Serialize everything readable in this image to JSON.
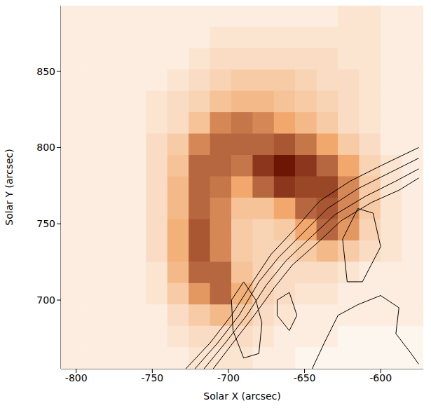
{
  "chart_data": {
    "type": "heatmap",
    "xlabel": "Solar X (arcsec)",
    "ylabel": "Solar Y (arcsec)",
    "xlim": [
      -810,
      -572
    ],
    "ylim": [
      655,
      893
    ],
    "xticks": [
      -800,
      -750,
      -700,
      -650,
      -600
    ],
    "yticks": [
      700,
      750,
      800,
      850
    ],
    "colors": [
      "#fdf6ee",
      "#f2a86c",
      "#6e1606"
    ],
    "x": [
      -803,
      -789,
      -775,
      -761,
      -747,
      -733,
      -719,
      -705,
      -691,
      -677,
      -663,
      -649,
      -635,
      -621,
      -607,
      -593,
      -579
    ],
    "y": [
      886,
      872,
      858,
      844,
      830,
      816,
      802,
      788,
      774,
      760,
      746,
      732,
      718,
      704,
      690,
      676,
      662
    ],
    "cells": [
      [
        1,
        1,
        1,
        1,
        1,
        1,
        1,
        1,
        1,
        1,
        1,
        1,
        1,
        1.5,
        1.5,
        1,
        1
      ],
      [
        1,
        1,
        1,
        1,
        1,
        1,
        1,
        1.5,
        1.5,
        1.5,
        1.5,
        1.5,
        1.5,
        1.5,
        1.5,
        1,
        1
      ],
      [
        1,
        1,
        1,
        1,
        1,
        1,
        1.5,
        2,
        2,
        2,
        2,
        2,
        2,
        1.5,
        1.5,
        1,
        1
      ],
      [
        1,
        1,
        1,
        1,
        1,
        1.5,
        2,
        2.5,
        3,
        3,
        3,
        2.5,
        2,
        2,
        1.5,
        1,
        1
      ],
      [
        1,
        1,
        1,
        1,
        1.5,
        2,
        2.5,
        3.5,
        4,
        4,
        3.5,
        3,
        2.5,
        2,
        1.5,
        1,
        1
      ],
      [
        1,
        1,
        1,
        1,
        1.5,
        2,
        3.5,
        6,
        6.5,
        6,
        5,
        4,
        3,
        2,
        1.5,
        1,
        1
      ],
      [
        1,
        1,
        1,
        1,
        2,
        3,
        6,
        7,
        7,
        7,
        7.5,
        6.5,
        5,
        3,
        2,
        1,
        1
      ],
      [
        1,
        1,
        1,
        1,
        2,
        3.5,
        7,
        7,
        6.5,
        8.5,
        9.5,
        8.5,
        7,
        5,
        2.5,
        1.5,
        1
      ],
      [
        1,
        1,
        1,
        1,
        2,
        4,
        7,
        6.5,
        5,
        7,
        8.5,
        8,
        8,
        6,
        3,
        1.5,
        1
      ],
      [
        1,
        1,
        1,
        1,
        2,
        4,
        7,
        6,
        3.5,
        3.5,
        5,
        7,
        7.5,
        6,
        3,
        1.5,
        1
      ],
      [
        1,
        1,
        1,
        1,
        2,
        4.5,
        7.5,
        6,
        3,
        2.5,
        3,
        5,
        7,
        5.5,
        2.5,
        1.5,
        1
      ],
      [
        1,
        1,
        1,
        1,
        2,
        4.5,
        7.5,
        6,
        3,
        2.5,
        2.5,
        3,
        4,
        3,
        2,
        1.5,
        1
      ],
      [
        1,
        1,
        1,
        1,
        1.5,
        4,
        7,
        7,
        3.5,
        2.5,
        2,
        2,
        2,
        1.5,
        1,
        1,
        1
      ],
      [
        1,
        1,
        1,
        1,
        1.5,
        3,
        5.5,
        7,
        4.5,
        2.5,
        2,
        1.5,
        1.5,
        1,
        1,
        1,
        1
      ],
      [
        1,
        1,
        1,
        1,
        1,
        2,
        3,
        4,
        3,
        2,
        1.5,
        1,
        1,
        1,
        1,
        1,
        1
      ],
      [
        1,
        1,
        1,
        1,
        1,
        1.5,
        2,
        2,
        2,
        1.5,
        1,
        1,
        1,
        0.5,
        0.5,
        0.5,
        0.5
      ],
      [
        1,
        1,
        1,
        1,
        1,
        1,
        1.5,
        1.5,
        1.5,
        1,
        1,
        0.5,
        0.5,
        0.5,
        0.5,
        0.5,
        0.5
      ]
    ],
    "contour_color": "#000000",
    "contours": [
      {
        "x": [
          -728,
          -712,
          -698,
          -684,
          -672,
          -655,
          -640,
          -620,
          -600,
          -575
        ],
        "y": [
          655,
          672,
          690,
          712,
          730,
          748,
          765,
          778,
          788,
          800
        ]
      },
      {
        "x": [
          -722,
          -707,
          -693,
          -680,
          -667,
          -650,
          -635,
          -615,
          -595,
          -575
        ],
        "y": [
          655,
          672,
          690,
          712,
          728,
          745,
          760,
          773,
          783,
          793
        ]
      },
      {
        "x": [
          -716,
          -702,
          -688,
          -675,
          -662,
          -645,
          -630,
          -610,
          -590,
          -575
        ],
        "y": [
          655,
          672,
          690,
          710,
          726,
          742,
          756,
          768,
          778,
          786
        ]
      },
      {
        "x": [
          -710,
          -697,
          -683,
          -670,
          -658,
          -641,
          -626,
          -606,
          -588,
          -575
        ],
        "y": [
          655,
          672,
          690,
          708,
          723,
          738,
          752,
          764,
          772,
          780
        ]
      },
      {
        "x": [
          -625,
          -615,
          -605,
          -600,
          -612,
          -622,
          -625
        ],
        "y": [
          740,
          760,
          757,
          735,
          712,
          712,
          740
        ]
      },
      {
        "x": [
          -698,
          -690,
          -682,
          -678,
          -680,
          -690,
          -697,
          -698
        ],
        "y": [
          700,
          712,
          700,
          685,
          665,
          662,
          680,
          700
        ]
      },
      {
        "x": [
          -645,
          -637,
          -628,
          -615,
          -600,
          -588,
          -590,
          -580,
          -575
        ],
        "y": [
          655,
          672,
          690,
          697,
          703,
          695,
          678,
          665,
          658
        ]
      },
      {
        "x": [
          -668,
          -660,
          -655,
          -660,
          -668,
          -668
        ],
        "y": [
          700,
          705,
          690,
          680,
          690,
          700
        ]
      }
    ]
  }
}
